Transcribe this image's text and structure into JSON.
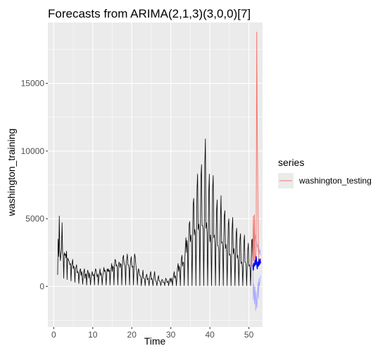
{
  "chart_data": {
    "type": "line",
    "title": "Forecasts from ARIMA(2,1,3)(3,0,0)[7]",
    "xlabel": "Time",
    "ylabel": "washington_training",
    "x_ticks": [
      0,
      10,
      20,
      30,
      40,
      50
    ],
    "y_ticks": [
      0,
      5000,
      10000,
      15000
    ],
    "xlim": [
      -1.5,
      53.5
    ],
    "ylim": [
      -3000,
      19500
    ],
    "grid": true,
    "legend": {
      "title": "series",
      "position": "right",
      "entries": [
        "washington_testing"
      ]
    },
    "colors": {
      "panel_bg": "#ebebeb",
      "grid_major": "#ffffff",
      "training": "#000000",
      "testing": "#f8766d",
      "forecast": "#0000ff",
      "interval": "#a6a6ff"
    },
    "series": [
      {
        "name": "",
        "role": "training",
        "x": [
          1.0,
          1.14,
          1.29,
          1.43,
          1.57,
          1.71,
          1.86,
          2.0,
          2.14,
          2.29,
          2.43,
          2.57,
          2.71,
          2.86,
          3.0,
          3.14,
          3.29,
          3.43,
          3.57,
          3.71,
          3.86,
          4.0,
          4.14,
          4.29,
          4.43,
          4.57,
          4.71,
          4.86,
          5.0,
          5.14,
          5.29,
          5.43,
          5.57,
          5.71,
          5.86,
          6.0,
          6.14,
          6.29,
          6.43,
          6.57,
          6.71,
          6.86,
          7.0,
          7.14,
          7.29,
          7.43,
          7.57,
          7.71,
          7.86,
          8.0,
          8.14,
          8.29,
          8.43,
          8.57,
          8.71,
          8.86,
          9.0,
          9.14,
          9.29,
          9.43,
          9.57,
          9.71,
          9.86,
          10.0,
          10.14,
          10.29,
          10.43,
          10.57,
          10.71,
          10.86,
          11.0,
          11.14,
          11.29,
          11.43,
          11.57,
          11.71,
          11.86,
          12.0,
          12.14,
          12.29,
          12.43,
          12.57,
          12.71,
          12.86,
          13.0,
          13.14,
          13.29,
          13.43,
          13.57,
          13.71,
          13.86,
          14.0,
          14.14,
          14.29,
          14.43,
          14.57,
          14.71,
          14.86,
          15.0,
          15.14,
          15.29,
          15.43,
          15.57,
          15.71,
          15.86,
          16.0,
          16.14,
          16.29,
          16.43,
          16.57,
          16.71,
          16.86,
          17.0,
          17.14,
          17.29,
          17.43,
          17.57,
          17.71,
          17.86,
          18.0,
          18.14,
          18.29,
          18.43,
          18.57,
          18.71,
          18.86,
          19.0,
          19.14,
          19.29,
          19.43,
          19.57,
          19.71,
          19.86,
          20.0,
          20.14,
          20.29,
          20.43,
          20.57,
          20.71,
          20.86,
          21.0,
          21.14,
          21.29,
          21.43,
          21.57,
          21.71,
          21.86,
          22.0,
          22.14,
          22.29,
          22.43,
          22.57,
          22.71,
          22.86,
          23.0,
          23.14,
          23.29,
          23.43,
          23.57,
          23.71,
          23.86,
          24.0,
          24.14,
          24.29,
          24.43,
          24.57,
          24.71,
          24.86,
          25.0,
          25.14,
          25.29,
          25.43,
          25.57,
          25.71,
          25.86,
          26.0,
          26.14,
          26.29,
          26.43,
          26.57,
          26.71,
          26.86,
          27.0,
          27.14,
          27.29,
          27.43,
          27.57,
          27.71,
          27.86,
          28.0,
          28.14,
          28.29,
          28.43,
          28.57,
          28.71,
          28.86,
          29.0,
          29.14,
          29.29,
          29.43,
          29.57,
          29.71,
          29.86,
          30.0,
          30.14,
          30.29,
          30.43,
          30.57,
          30.71,
          30.86,
          31.0,
          31.14,
          31.29,
          31.43,
          31.57,
          31.71,
          31.86,
          32.0,
          32.14,
          32.29,
          32.43,
          32.57,
          32.71,
          32.86,
          33.0,
          33.14,
          33.29,
          33.43,
          33.57,
          33.71,
          33.86,
          34.0,
          34.14,
          34.29,
          34.43,
          34.57,
          34.71,
          34.86,
          35.0,
          35.14,
          35.29,
          35.43,
          35.57,
          35.71,
          35.86,
          36.0,
          36.14,
          36.29,
          36.43,
          36.57,
          36.71,
          36.86,
          37.0,
          37.14,
          37.29,
          37.43,
          37.57,
          37.71,
          37.86,
          38.0,
          38.14,
          38.29,
          38.43,
          38.57,
          38.71,
          38.86,
          39.0,
          39.14,
          39.29,
          39.43,
          39.57,
          39.71,
          39.86,
          40.0,
          40.14,
          40.29,
          40.43,
          40.57,
          40.71,
          40.86,
          41.0,
          41.14,
          41.29,
          41.43,
          41.57,
          41.71,
          41.86,
          42.0,
          42.14,
          42.29,
          42.43,
          42.57,
          42.71,
          42.86,
          43.0,
          43.14,
          43.29,
          43.43,
          43.57,
          43.71,
          43.86,
          44.0,
          44.14,
          44.29,
          44.43,
          44.57,
          44.71,
          44.86,
          45.0,
          45.14,
          45.29,
          45.43,
          45.57,
          45.71,
          45.86,
          46.0,
          46.14,
          46.29,
          46.43,
          46.57,
          46.71,
          46.86,
          47.0,
          47.14,
          47.29,
          47.43,
          47.57,
          47.71,
          47.86,
          48.0,
          48.14,
          48.29,
          48.43,
          48.57,
          48.71,
          48.86,
          49.0,
          49.14,
          49.29,
          49.43,
          49.57,
          49.71,
          49.86,
          50.0,
          50.14,
          50.29,
          50.43,
          50.57,
          50.71,
          50.86,
          51.0
        ],
        "y": [
          850,
          3500,
          2200,
          5200,
          2600,
          1900,
          2400,
          2800,
          4700,
          2400,
          2300,
          600,
          2500,
          2300,
          2400,
          2100,
          2600,
          500,
          2100,
          2000,
          1900,
          1800,
          1600,
          1700,
          400,
          1500,
          1700,
          2000,
          1300,
          1500,
          1300,
          300,
          1300,
          1400,
          1600,
          1000,
          1100,
          1000,
          200,
          1000,
          1200,
          1300,
          800,
          1100,
          800,
          150,
          800,
          1100,
          1300,
          600,
          900,
          900,
          100,
          900,
          1200,
          1000,
          600,
          1000,
          700,
          100,
          700,
          900,
          1100,
          800,
          800,
          900,
          100,
          1000,
          1300,
          1200,
          900,
          700,
          900,
          100,
          800,
          1000,
          1300,
          800,
          1000,
          600,
          100,
          800,
          1000,
          1400,
          1100,
          1200,
          900,
          100,
          1000,
          1300,
          1100,
          1300,
          1100,
          1200,
          100,
          1100,
          1300,
          1700,
          1100,
          1500,
          1400,
          100,
          1600,
          2000,
          1900,
          1500,
          1600,
          1400,
          100,
          1400,
          1800,
          1700,
          1400,
          1700,
          1600,
          100,
          1400,
          2100,
          2300,
          1800,
          1600,
          1500,
          100,
          1800,
          2000,
          2400,
          1600,
          1600,
          1300,
          100,
          1400,
          1900,
          2200,
          1600,
          1400,
          1500,
          100,
          1400,
          2400,
          2200,
          1700,
          1300,
          1100,
          100,
          900,
          1300,
          1200,
          800,
          800,
          700,
          50,
          500,
          800,
          1200,
          600,
          600,
          500,
          50,
          600,
          800,
          900,
          500,
          600,
          400,
          50,
          600,
          900,
          1100,
          500,
          600,
          400,
          50,
          500,
          800,
          1100,
          500,
          400,
          300,
          50,
          400,
          600,
          800,
          400,
          400,
          300,
          50,
          300,
          500,
          500,
          300,
          300,
          300,
          50,
          400,
          600,
          500,
          300,
          300,
          400,
          50,
          300,
          500,
          600,
          300,
          600,
          400,
          50,
          600,
          800,
          1100,
          600,
          800,
          600,
          50,
          800,
          1400,
          1700,
          1100,
          1500,
          1200,
          50,
          1300,
          2000,
          2300,
          1500,
          1800,
          1700,
          50,
          1900,
          2900,
          3600,
          2500,
          3400,
          2700,
          50,
          3300,
          4600,
          4800,
          3300,
          3800,
          3300,
          50,
          3100,
          6000,
          6500,
          3800,
          4200,
          3900,
          50,
          3800,
          7200,
          8300,
          4200,
          4600,
          4100,
          50,
          4700,
          8000,
          9000,
          4500,
          4500,
          4200,
          50,
          3900,
          9200,
          10900,
          4300,
          4700,
          3900,
          50,
          3400,
          6800,
          8300,
          3300,
          3800,
          3300,
          50,
          3600,
          7300,
          8200,
          3600,
          3800,
          3100,
          50,
          2900,
          5500,
          6400,
          3000,
          3000,
          2700,
          50,
          2800,
          5000,
          6700,
          3200,
          3300,
          2900,
          50,
          3300,
          5200,
          5600,
          2800,
          3100,
          2500,
          50,
          2700,
          4600,
          5000,
          2300,
          2400,
          2200,
          50,
          2200,
          4300,
          5100,
          2400,
          2800,
          2400,
          50,
          2300,
          3800,
          4300,
          2100,
          2300,
          1800,
          50,
          1900,
          3500,
          3900,
          1700,
          1800,
          1500,
          50,
          1700,
          3200,
          3800,
          1800,
          1800,
          1500,
          50,
          1500,
          2700,
          3200,
          1500,
          1600,
          1300,
          50,
          1700,
          3400,
          3500,
          1600
        ]
      },
      {
        "name": "washington_testing",
        "role": "testing",
        "x": [
          51.0,
          51.14,
          51.29,
          51.43,
          51.57,
          51.71,
          51.86,
          52.0,
          52.14,
          52.29,
          52.43,
          52.57,
          52.71,
          52.86,
          53.0
        ],
        "y": [
          1600,
          5200,
          1900,
          5300,
          1600,
          2200,
          2600,
          18800,
          11500,
          6800,
          2800,
          2000,
          1900,
          1700,
          2100
        ]
      },
      {
        "name": "",
        "role": "forecast",
        "x": [
          51.0,
          51.14,
          51.29,
          51.43,
          51.57,
          51.71,
          51.86,
          52.0,
          52.14,
          52.29,
          52.43,
          52.57,
          52.71,
          52.86,
          53.0
        ],
        "y": [
          1600,
          1200,
          1700,
          1500,
          1900,
          1600,
          2200,
          1700,
          1300,
          1800,
          1500,
          2000,
          1600,
          2000,
          1700
        ]
      },
      {
        "name": "",
        "role": "interval-lower",
        "x": [
          51.0,
          51.14,
          51.29,
          51.43,
          51.57,
          51.71,
          51.86,
          52.0,
          52.14,
          52.29,
          52.43,
          52.57,
          52.71,
          52.86,
          53.0
        ],
        "y": [
          1400,
          -1000,
          200,
          -1300,
          0,
          -1800,
          -400,
          -1600,
          -1200,
          300,
          -900,
          600,
          0,
          500,
          800
        ]
      },
      {
        "name": "",
        "role": "interval-upper",
        "x": [
          51.0,
          51.14,
          51.29,
          51.43,
          51.57,
          51.71,
          51.86,
          52.0,
          52.14,
          52.29,
          52.43,
          52.57,
          52.71,
          52.86,
          53.0
        ],
        "y": [
          1800,
          3600,
          2800,
          4200,
          3300,
          3800,
          3500,
          3200,
          2900,
          3100,
          2500,
          2900,
          2400,
          2700,
          2300
        ]
      }
    ]
  }
}
